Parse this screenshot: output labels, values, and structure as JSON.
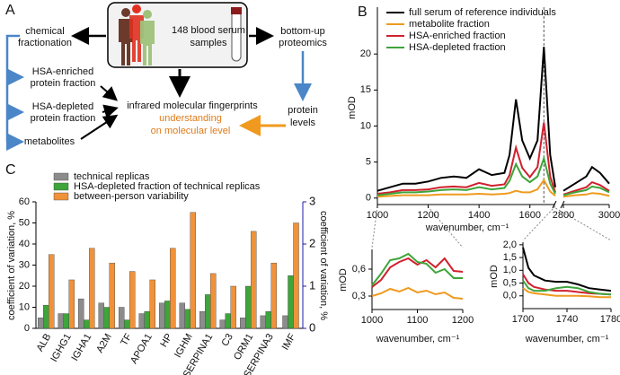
{
  "diagram": {
    "label": "A",
    "samples": [
      "148 blood serum",
      "samples"
    ],
    "fractionation": [
      "chemical",
      "fractionation"
    ],
    "proteomics": [
      "bottom-up",
      "proteomics"
    ],
    "fractions": [
      [
        "HSA-enriched",
        "protein fraction"
      ],
      [
        "HSA-depleted",
        "protein fraction"
      ],
      [
        "metabolites"
      ]
    ],
    "fingerprints": "infrared molecular fingerprints",
    "understanding": [
      "understanding",
      "on molecular level"
    ],
    "protein_levels": [
      "protein",
      "levels"
    ]
  },
  "chart_data": [
    {
      "type": "line",
      "label": "B",
      "xlabel": "wavenumber, cm⁻¹",
      "ylabel": "mOD",
      "x": [
        1000,
        1050,
        1100,
        1150,
        1200,
        1250,
        1300,
        1350,
        1400,
        1450,
        1500,
        1520,
        1545,
        1570,
        1600,
        1630,
        1655,
        1680,
        1700,
        2800,
        2850,
        2900,
        2925,
        2960,
        3000
      ],
      "xlim": [
        1000,
        3000
      ],
      "xbreak": [
        1700,
        2800
      ],
      "xticks": [
        1000,
        1200,
        1400,
        1600,
        2800,
        3000
      ],
      "ylim": [
        -0.9,
        26.5
      ],
      "yticks": [
        0,
        5,
        10,
        15,
        20
      ],
      "vline": 1655,
      "series": [
        {
          "name": "full serum of reference individuals",
          "color": "#000000",
          "values": [
            1.0,
            1.5,
            2.0,
            2.0,
            2.3,
            2.8,
            3.0,
            2.8,
            4.0,
            3.2,
            3.5,
            6,
            13.7,
            8,
            5.5,
            8,
            21,
            6,
            1.5,
            1.0,
            2.0,
            3.0,
            4.3,
            3.5,
            2.0
          ]
        },
        {
          "name": "metabolite fraction",
          "color": "#ef9a1e",
          "values": [
            0.2,
            0.3,
            0.4,
            0.4,
            0.4,
            0.5,
            0.5,
            0.5,
            0.6,
            0.5,
            0.6,
            0.7,
            1.0,
            0.8,
            0.8,
            1.2,
            2.5,
            0.9,
            0.3,
            0.2,
            0.4,
            0.5,
            0.7,
            0.6,
            0.3
          ]
        },
        {
          "name": "HSA-enriched fraction",
          "color": "#d0202e",
          "values": [
            0.6,
            0.8,
            1.1,
            1.1,
            1.2,
            1.5,
            1.6,
            1.5,
            2.1,
            1.7,
            1.9,
            3.2,
            7,
            4.2,
            2.9,
            4.3,
            10.5,
            3,
            0.8,
            0.5,
            1,
            1.5,
            2.2,
            1.8,
            1.0
          ]
        },
        {
          "name": "HSA-depleted fraction",
          "color": "#3da53a",
          "values": [
            0.4,
            0.6,
            0.8,
            0.8,
            0.9,
            1.1,
            1.2,
            1.1,
            1.5,
            1.2,
            1.4,
            2.4,
            4.7,
            3,
            2.2,
            3,
            5.5,
            2,
            0.6,
            0.4,
            0.8,
            1.1,
            1.6,
            1.4,
            0.8
          ]
        }
      ]
    },
    {
      "type": "line",
      "xlabel": "wavenumber, cm⁻¹",
      "ylabel": "mOD",
      "x": [
        1000,
        1020,
        1040,
        1060,
        1080,
        1100,
        1120,
        1140,
        1160,
        1180,
        1200
      ],
      "xlim": [
        1000,
        1200
      ],
      "xticks": [
        1000,
        1100,
        1200
      ],
      "ylim": [
        0.15,
        0.82
      ],
      "yticks": [
        {
          "value": 0.3,
          "label": "0,3"
        },
        {
          "value": 0.6,
          "label": "0,6"
        }
      ],
      "series": [
        {
          "color": "#ef9a1e",
          "values": [
            0.3,
            0.33,
            0.38,
            0.35,
            0.39,
            0.34,
            0.36,
            0.32,
            0.34,
            0.28,
            0.27
          ]
        },
        {
          "color": "#d0202e",
          "values": [
            0.4,
            0.48,
            0.62,
            0.68,
            0.72,
            0.65,
            0.7,
            0.62,
            0.72,
            0.58,
            0.57
          ]
        },
        {
          "color": "#3da53a",
          "values": [
            0.42,
            0.55,
            0.7,
            0.72,
            0.77,
            0.68,
            0.66,
            0.56,
            0.6,
            0.5,
            0.5
          ]
        }
      ]
    },
    {
      "type": "line",
      "xlabel": "wavenumber, cm⁻¹",
      "ylabel": "mOD",
      "x": [
        1700,
        1705,
        1710,
        1720,
        1730,
        1740,
        1750,
        1760,
        1770,
        1780
      ],
      "xlim": [
        1700,
        1780
      ],
      "xticks": [
        1700,
        1740,
        1780
      ],
      "ylim": [
        -0.5,
        2.1
      ],
      "yticks": [
        {
          "value": 0,
          "label": "0,0"
        },
        {
          "value": 0.5,
          "label": "0,5"
        },
        {
          "value": 1,
          "label": "1,0"
        },
        {
          "value": 1.5,
          "label": "1,5"
        },
        {
          "value": 2,
          "label": "2,0"
        }
      ],
      "series": [
        {
          "color": "#000000",
          "values": [
            1.9,
            1.1,
            0.8,
            0.6,
            0.55,
            0.55,
            0.45,
            0.3,
            0.25,
            0.2
          ]
        },
        {
          "color": "#ef9a1e",
          "values": [
            0.3,
            0.15,
            0.1,
            0.05,
            0.0,
            0.0,
            0.0,
            -0.02,
            -0.05,
            -0.05
          ]
        },
        {
          "color": "#d0202e",
          "values": [
            0.85,
            0.5,
            0.35,
            0.25,
            0.2,
            0.2,
            0.15,
            0.1,
            0.08,
            0.05
          ]
        },
        {
          "color": "#3da53a",
          "values": [
            0.6,
            0.3,
            0.2,
            0.2,
            0.3,
            0.35,
            0.3,
            0.15,
            0.08,
            0.05
          ]
        }
      ]
    },
    {
      "type": "bar",
      "label": "C",
      "ylabel": "coefficient of variation, %",
      "y2label": "coefficient of variation, %",
      "categories": [
        "ALB",
        "IGHG1",
        "IGHA1",
        "A2M",
        "TF",
        "APOA1",
        "HP",
        "IGHM",
        "SERPINA1",
        "C3",
        "ORM1",
        "SERPINA3"
      ],
      "ylim": [
        0,
        60
      ],
      "yticks": [
        0,
        10,
        20,
        30,
        40,
        50,
        60
      ],
      "y2lim": [
        0,
        3
      ],
      "y2ticks": [
        0,
        1,
        2,
        3
      ],
      "y2color": "#1c1ca8",
      "series": [
        {
          "name": "technical replicas",
          "color": "#8c8c8c",
          "values": [
            5,
            7,
            14,
            12,
            10,
            7,
            12,
            12,
            8,
            4,
            5,
            6
          ]
        },
        {
          "name": "HSA-depleted fraction of technical replicas",
          "color": "#3da53a",
          "values": [
            11,
            7,
            4,
            10,
            4,
            8,
            13,
            9,
            16,
            7,
            20,
            8
          ]
        },
        {
          "name": "between-person variability",
          "color": "#f0923a",
          "values": [
            35,
            23,
            38,
            31,
            27,
            23,
            38,
            55,
            26,
            20,
            46,
            31
          ]
        }
      ],
      "y2_bars": {
        "category": "IMF",
        "axis": "y2",
        "values": [
          0.3,
          1.25,
          2.5
        ]
      }
    }
  ]
}
